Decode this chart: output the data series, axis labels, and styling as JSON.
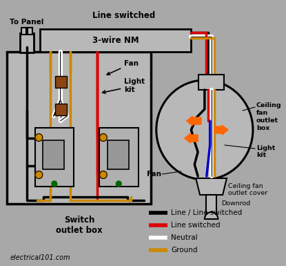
{
  "bg_color": "#a8a8a8",
  "line_black": "#000000",
  "line_red": "#dd0000",
  "line_white": "#ffffff",
  "line_yellow": "#cc8800",
  "line_blue": "#0000cc",
  "line_orange": "#ff6600",
  "line_green": "#006600",
  "line_brown": "#8B4513",
  "box_fill": "#b8b8b8",
  "legend_items": [
    {
      "label": "Line / Line switched",
      "color": "#000000"
    },
    {
      "label": "Line switched",
      "color": "#dd0000"
    },
    {
      "label": "Neutral",
      "color": "#ffffff"
    },
    {
      "label": "Ground",
      "color": "#cc8800"
    }
  ],
  "texts": {
    "to_panel": "To Panel",
    "line_switched": "Line switched",
    "three_wire": "3-wire NM",
    "fan_label": "Fan",
    "light_kit": "Light\nkit",
    "switch_outlet_box": "Switch\noutlet box",
    "ceiling_fan_outlet_box": "Ceiling\nfan\noutlet\nbox",
    "light_kit2": "Light\nkit",
    "ceiling_fan_outlet_cover": "Ceiling fan\noutlet cover",
    "downrod": "Downrod",
    "fan2": "Fan",
    "website": "electrical101.com"
  }
}
